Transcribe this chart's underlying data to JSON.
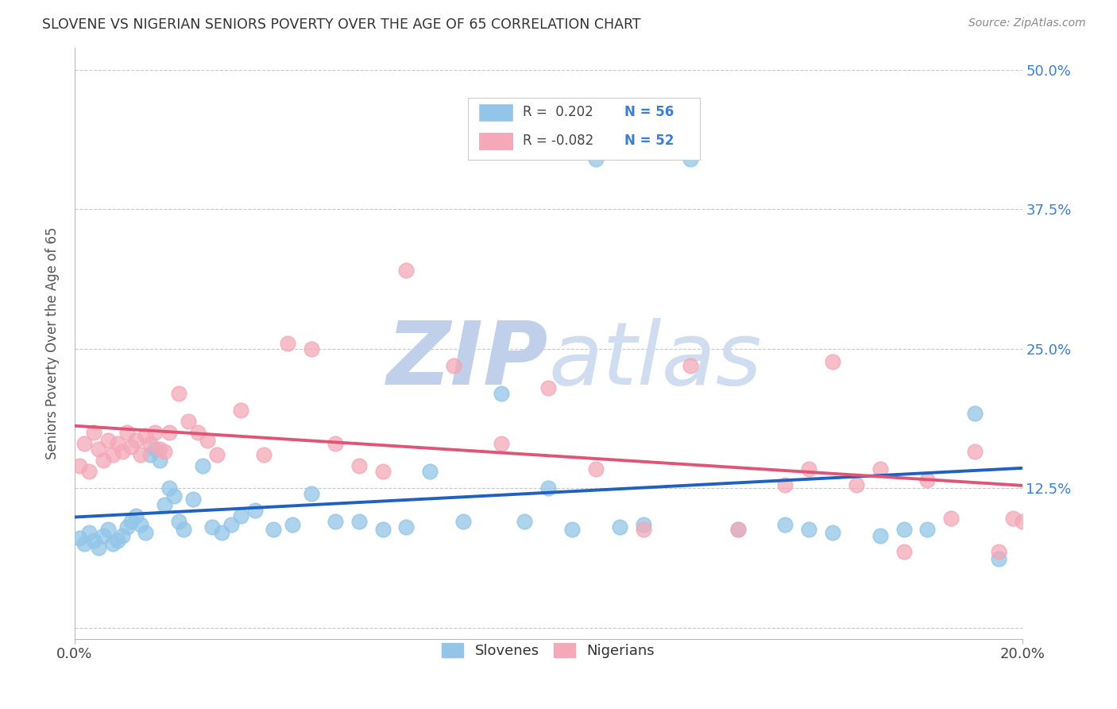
{
  "title": "SLOVENE VS NIGERIAN SENIORS POVERTY OVER THE AGE OF 65 CORRELATION CHART",
  "source": "Source: ZipAtlas.com",
  "ylabel": "Seniors Poverty Over the Age of 65",
  "yticks": [
    0.0,
    0.125,
    0.25,
    0.375,
    0.5
  ],
  "ytick_labels": [
    "",
    "12.5%",
    "25.0%",
    "37.5%",
    "50.0%"
  ],
  "xlim": [
    0.0,
    0.2
  ],
  "ylim": [
    -0.01,
    0.52
  ],
  "legend_r_slovene": "R =  0.202",
  "legend_n_slovene": "N = 56",
  "legend_r_nigerian": "R = -0.082",
  "legend_n_nigerian": "N = 52",
  "slovene_color": "#92C5E8",
  "nigerian_color": "#F4A8B8",
  "trendline_slovene_color": "#2060C0",
  "trendline_nigerian_color": "#E05575",
  "watermark_color": "#C8D8EE",
  "background_color": "#FFFFFF",
  "slovene_points_x": [
    0.001,
    0.002,
    0.003,
    0.004,
    0.005,
    0.006,
    0.007,
    0.008,
    0.009,
    0.01,
    0.011,
    0.012,
    0.013,
    0.014,
    0.015,
    0.016,
    0.017,
    0.018,
    0.019,
    0.02,
    0.021,
    0.022,
    0.023,
    0.025,
    0.027,
    0.029,
    0.031,
    0.033,
    0.035,
    0.038,
    0.042,
    0.046,
    0.05,
    0.055,
    0.06,
    0.065,
    0.07,
    0.075,
    0.082,
    0.09,
    0.095,
    0.1,
    0.105,
    0.11,
    0.115,
    0.12,
    0.13,
    0.14,
    0.15,
    0.155,
    0.16,
    0.17,
    0.175,
    0.18,
    0.19,
    0.195
  ],
  "slovene_points_y": [
    0.08,
    0.075,
    0.085,
    0.078,
    0.072,
    0.082,
    0.088,
    0.075,
    0.078,
    0.082,
    0.09,
    0.095,
    0.1,
    0.092,
    0.085,
    0.155,
    0.16,
    0.15,
    0.11,
    0.125,
    0.118,
    0.095,
    0.088,
    0.115,
    0.145,
    0.09,
    0.085,
    0.092,
    0.1,
    0.105,
    0.088,
    0.092,
    0.12,
    0.095,
    0.095,
    0.088,
    0.09,
    0.14,
    0.095,
    0.21,
    0.095,
    0.125,
    0.088,
    0.42,
    0.09,
    0.092,
    0.42,
    0.088,
    0.092,
    0.088,
    0.085,
    0.082,
    0.088,
    0.088,
    0.192,
    0.062
  ],
  "nigerian_points_x": [
    0.001,
    0.002,
    0.003,
    0.004,
    0.005,
    0.006,
    0.007,
    0.008,
    0.009,
    0.01,
    0.011,
    0.012,
    0.013,
    0.014,
    0.015,
    0.016,
    0.017,
    0.018,
    0.019,
    0.02,
    0.022,
    0.024,
    0.026,
    0.028,
    0.03,
    0.035,
    0.04,
    0.045,
    0.05,
    0.055,
    0.06,
    0.065,
    0.07,
    0.08,
    0.09,
    0.1,
    0.11,
    0.12,
    0.13,
    0.14,
    0.15,
    0.155,
    0.16,
    0.165,
    0.17,
    0.175,
    0.18,
    0.185,
    0.19,
    0.195,
    0.198,
    0.2
  ],
  "nigerian_points_y": [
    0.145,
    0.165,
    0.14,
    0.175,
    0.16,
    0.15,
    0.168,
    0.155,
    0.165,
    0.158,
    0.175,
    0.162,
    0.168,
    0.155,
    0.172,
    0.165,
    0.175,
    0.16,
    0.158,
    0.175,
    0.21,
    0.185,
    0.175,
    0.168,
    0.155,
    0.195,
    0.155,
    0.255,
    0.25,
    0.165,
    0.145,
    0.14,
    0.32,
    0.235,
    0.165,
    0.215,
    0.142,
    0.088,
    0.235,
    0.088,
    0.128,
    0.142,
    0.238,
    0.128,
    0.142,
    0.068,
    0.132,
    0.098,
    0.158,
    0.068,
    0.098,
    0.095
  ]
}
